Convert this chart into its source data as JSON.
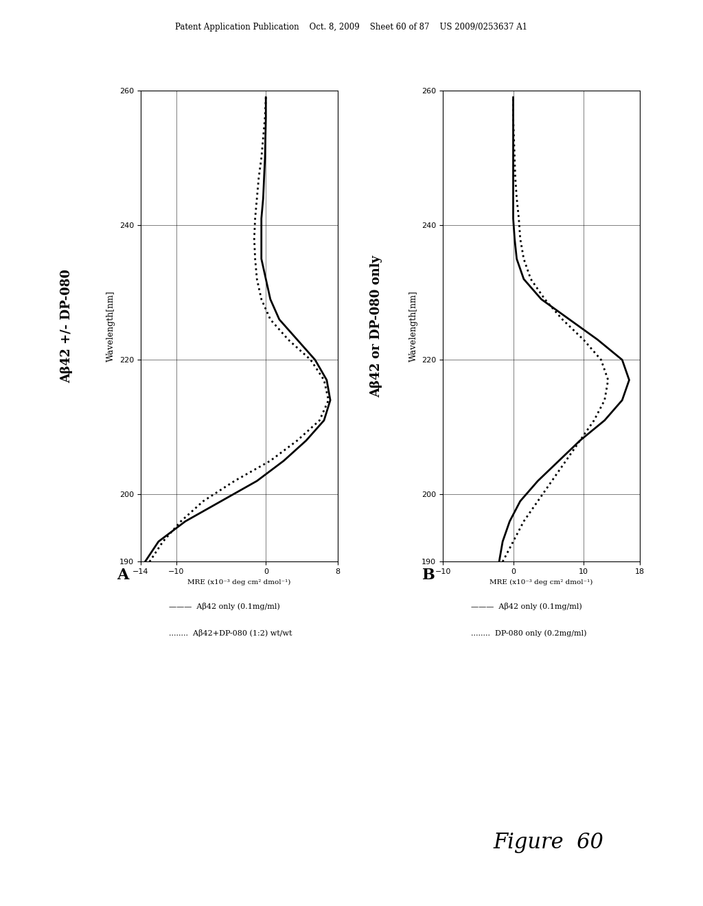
{
  "fig_title": "Figure 60",
  "header_text": "Patent Application Publication    Oct. 8, 2009    Sheet 60 of 87    US 2009/0253637 A1",
  "panel_A": {
    "title": "Aβ42 +/- DP-080",
    "xlabel": "Wavelength[nm]",
    "ylabel": "MRE (x10⁻³ deg cm² dmol⁻¹)",
    "xlim": [
      190,
      260
    ],
    "ylim": [
      -14,
      8
    ],
    "yticks": [
      -14,
      -10,
      0,
      8
    ],
    "xticks": [
      190,
      200,
      220,
      240,
      260
    ],
    "legend1": "Aβ42 only (0.1mg/ml)",
    "legend2": "Aβ42+DP-080 (1:2) wt/wt",
    "label": "A",
    "solid_x": [
      190,
      193,
      196,
      199,
      202,
      205,
      208,
      211,
      214,
      217,
      220,
      223,
      226,
      229,
      232,
      235,
      238,
      241,
      244,
      247,
      250,
      253,
      256,
      259
    ],
    "solid_y": [
      -13.5,
      -12.0,
      -9.0,
      -5.0,
      -1.0,
      2.0,
      4.5,
      6.5,
      7.2,
      6.8,
      5.5,
      3.5,
      1.5,
      0.5,
      0.0,
      -0.5,
      -0.5,
      -0.5,
      -0.3,
      -0.2,
      -0.1,
      -0.05,
      0.0,
      0.0
    ],
    "dotted_x": [
      190,
      193,
      196,
      199,
      202,
      205,
      208,
      211,
      214,
      217,
      220,
      223,
      226,
      229,
      232,
      235,
      238,
      241,
      244,
      247,
      250,
      253,
      256,
      259
    ],
    "dotted_y": [
      -13.0,
      -11.5,
      -9.5,
      -7.0,
      -3.5,
      0.5,
      3.5,
      6.0,
      7.0,
      6.5,
      5.0,
      2.5,
      0.5,
      -0.5,
      -1.0,
      -1.2,
      -1.3,
      -1.2,
      -1.0,
      -0.8,
      -0.5,
      -0.3,
      -0.1,
      0.0
    ]
  },
  "panel_B": {
    "title": "Aβ42 or DP-080 only",
    "xlabel": "Wavelength[nm]",
    "ylabel": "MRE (x10⁻³ deg cm² dmol⁻¹)",
    "xlim": [
      190,
      260
    ],
    "ylim": [
      -10,
      18
    ],
    "yticks": [
      -10,
      0,
      10,
      18
    ],
    "xticks": [
      190,
      200,
      220,
      240,
      260
    ],
    "legend1": "Aβ42 only (0.1mg/ml)",
    "legend2": "DP-080 only (0.2mg/ml)",
    "label": "B",
    "solid_x": [
      190,
      193,
      196,
      199,
      202,
      205,
      208,
      211,
      214,
      217,
      220,
      223,
      226,
      229,
      232,
      235,
      238,
      241,
      244,
      247,
      250,
      253,
      256,
      259
    ],
    "solid_y": [
      -2.0,
      -1.5,
      -0.5,
      1.0,
      3.5,
      6.5,
      9.5,
      13.0,
      15.5,
      16.5,
      15.5,
      12.0,
      8.0,
      4.0,
      1.5,
      0.5,
      0.2,
      0.0,
      0.0,
      0.0,
      0.0,
      0.0,
      0.0,
      0.0
    ],
    "dotted_x": [
      190,
      193,
      196,
      199,
      202,
      205,
      208,
      211,
      214,
      217,
      220,
      223,
      226,
      229,
      232,
      235,
      238,
      241,
      244,
      247,
      250,
      253,
      256,
      259
    ],
    "dotted_y": [
      -1.5,
      0.0,
      1.5,
      3.5,
      5.5,
      7.5,
      9.5,
      11.5,
      13.0,
      13.5,
      12.5,
      10.0,
      7.0,
      4.5,
      2.5,
      1.5,
      1.0,
      0.8,
      0.5,
      0.3,
      0.2,
      0.1,
      0.0,
      0.0
    ]
  }
}
